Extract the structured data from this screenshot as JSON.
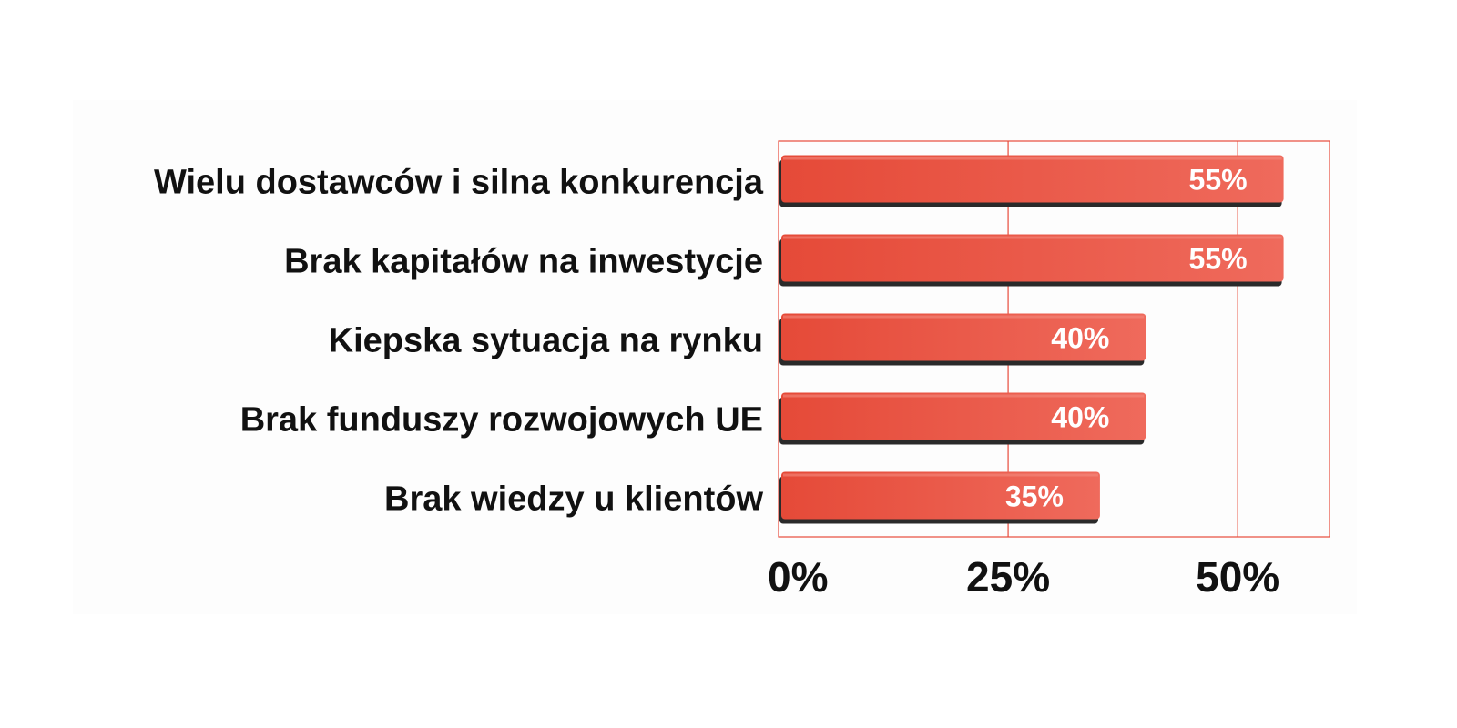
{
  "chart_data": {
    "type": "bar",
    "orientation": "horizontal",
    "categories": [
      "Wielu dostawców i silna konkurencja",
      "Brak kapitałów na inwestycje",
      "Kiepska sytuacja na rynku",
      "Brak funduszy rozwojowych UE",
      "Brak wiedzy u klientów"
    ],
    "values": [
      55,
      55,
      40,
      40,
      35
    ],
    "value_labels": [
      "55%",
      "55%",
      "40%",
      "40%",
      "35%"
    ],
    "xlim": [
      0,
      60
    ],
    "x_ticks": [
      0,
      25,
      50
    ],
    "x_tick_labels": [
      "0%",
      "25%",
      "50%"
    ],
    "grid": true,
    "colors": {
      "bar": "#e8503e",
      "bar_light": "#ee6a5a",
      "bar_shadow": "#2a2a2a",
      "plot_border": "#e84a3a",
      "gridline": "#e84a3a"
    }
  }
}
